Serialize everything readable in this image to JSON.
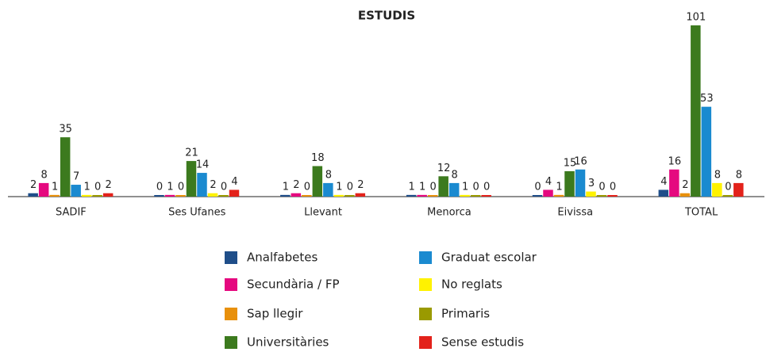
{
  "chart_data": {
    "type": "bar",
    "title": "ESTUDIS",
    "categories": [
      "SADIF",
      "Ses Ufanes",
      "Llevant",
      "Menorca",
      "Eivissa",
      "TOTAL"
    ],
    "series": [
      {
        "name": "Analfabetes",
        "color": "#1f4e89",
        "values": [
          2,
          0,
          1,
          1,
          0,
          4
        ]
      },
      {
        "name": "Secundària / FP",
        "color": "#e5097f",
        "values": [
          8,
          1,
          2,
          1,
          4,
          16
        ]
      },
      {
        "name": "Sap llegir",
        "color": "#e8900c",
        "values": [
          1,
          0,
          0,
          0,
          1,
          2
        ]
      },
      {
        "name": "Universitàries",
        "color": "#3c7a1e",
        "values": [
          35,
          21,
          18,
          12,
          15,
          101
        ]
      },
      {
        "name": "Graduat escolar",
        "color": "#1a8ad0",
        "values": [
          7,
          14,
          8,
          8,
          16,
          53
        ]
      },
      {
        "name": "No reglats",
        "color": "#fff200",
        "values": [
          1,
          2,
          1,
          1,
          3,
          8
        ]
      },
      {
        "name": "Primaris",
        "color": "#9a9a00",
        "values": [
          0,
          0,
          0,
          0,
          0,
          0
        ]
      },
      {
        "name": "Sense estudis",
        "color": "#e3221b",
        "values": [
          2,
          4,
          2,
          0,
          0,
          8
        ]
      }
    ]
  }
}
